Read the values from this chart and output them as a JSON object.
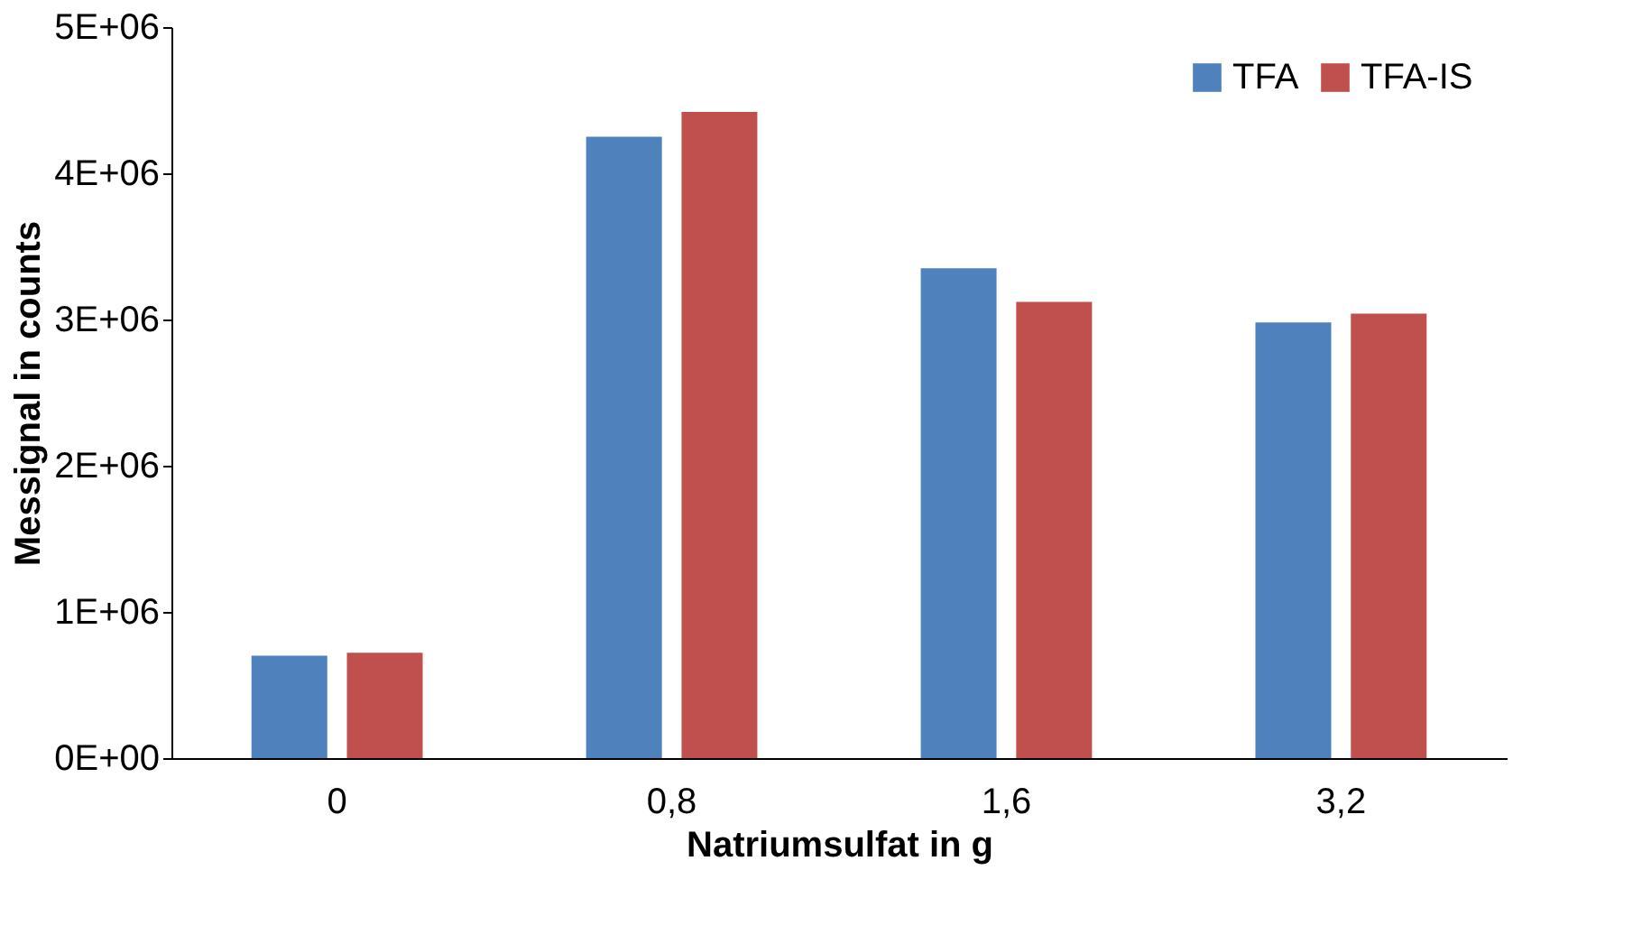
{
  "chart_data": {
    "type": "bar",
    "xlabel": "Natriumsulfat in g",
    "ylabel": "Messignal in counts",
    "categories": [
      "0",
      "0,8",
      "1,6",
      "3,2"
    ],
    "series": [
      {
        "name": "TFA",
        "color": "#4f81bd",
        "values": [
          700000,
          4250000,
          3350000,
          2980000
        ]
      },
      {
        "name": "TFA-IS",
        "color": "#c0504d",
        "values": [
          720000,
          4420000,
          3120000,
          3040000
        ]
      }
    ],
    "ylim": [
      0,
      5000000
    ],
    "yticks": [
      {
        "value": 0,
        "label": "0E+00"
      },
      {
        "value": 1000000,
        "label": "1E+06"
      },
      {
        "value": 2000000,
        "label": "2E+06"
      },
      {
        "value": 3000000,
        "label": "3E+06"
      },
      {
        "value": 4000000,
        "label": "4E+06"
      },
      {
        "value": 5000000,
        "label": "5E+06"
      }
    ],
    "grid": false,
    "legend": "top right"
  }
}
